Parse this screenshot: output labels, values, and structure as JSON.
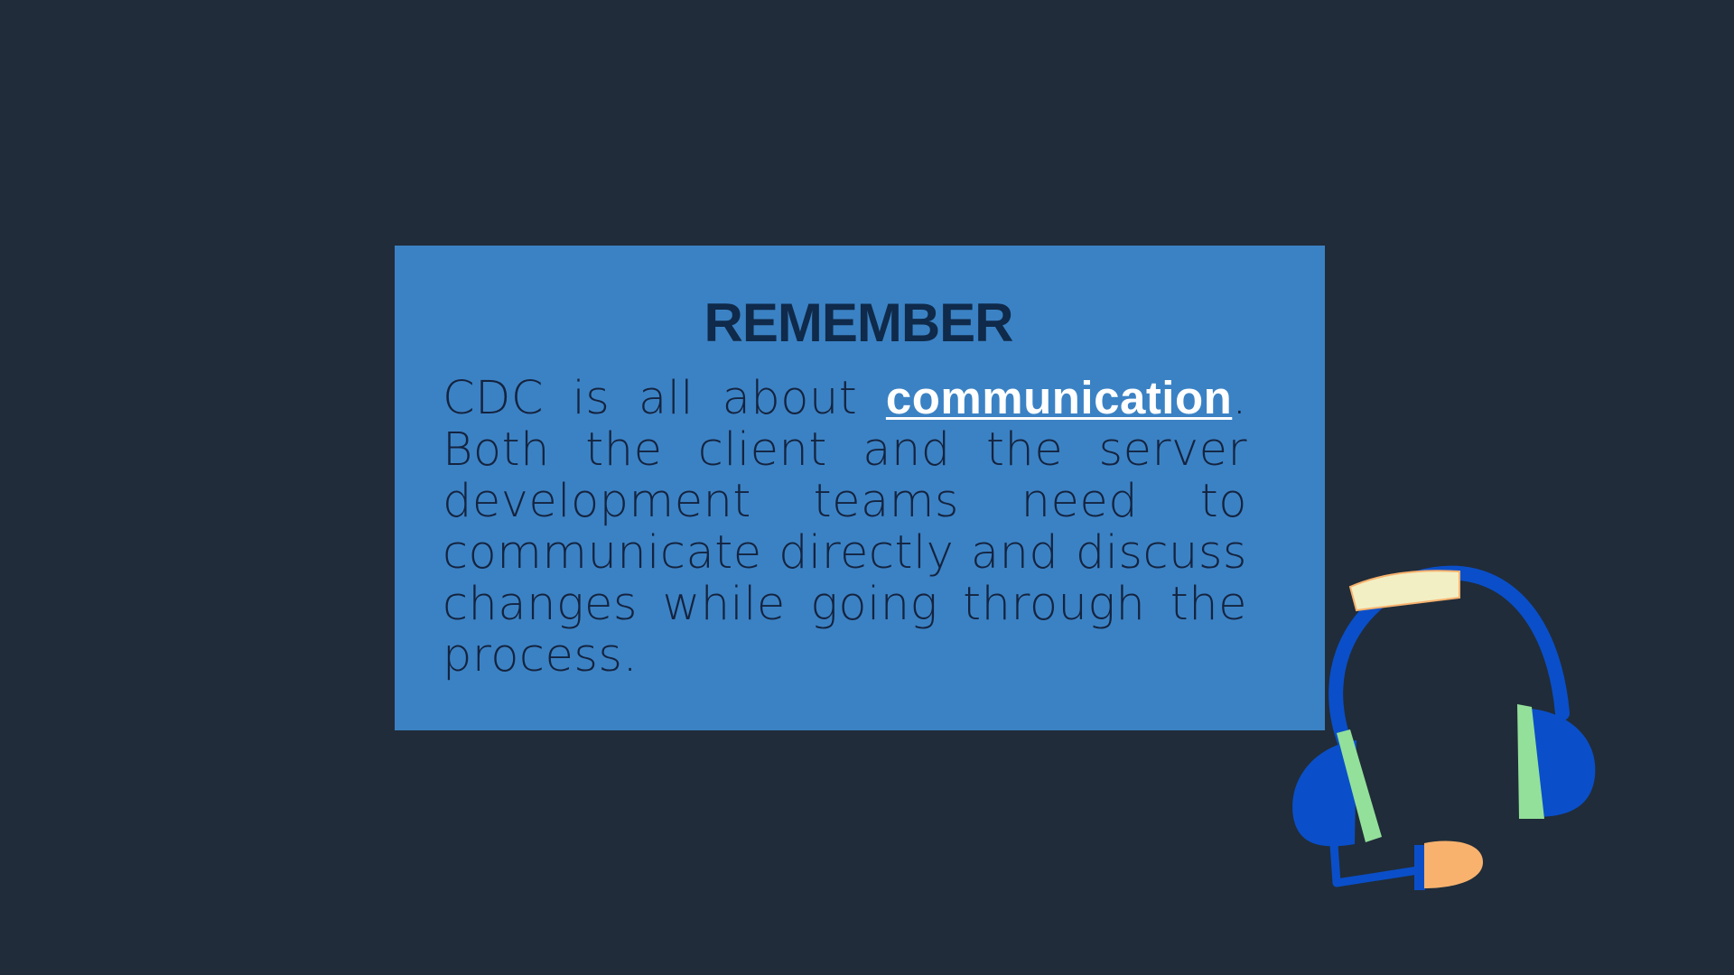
{
  "slide": {
    "title": "REMEMBER",
    "body_before": "CDC is all about ",
    "body_emphasis": "communication",
    "body_after": ". Both the client and the server development teams need to communicate directly and discuss changes while going through the process."
  },
  "illustration": {
    "icon": "headset-icon"
  },
  "colors": {
    "background": "#202c39",
    "card": "#3b82c4",
    "title": "#0f2a4a",
    "body_text": "#14233f",
    "emphasis": "#ffffff",
    "headset_blue": "#0a4fc9",
    "headset_green": "#93e09a",
    "headband_pad": "#f2efc4",
    "mic_tip": "#f8b26e"
  }
}
